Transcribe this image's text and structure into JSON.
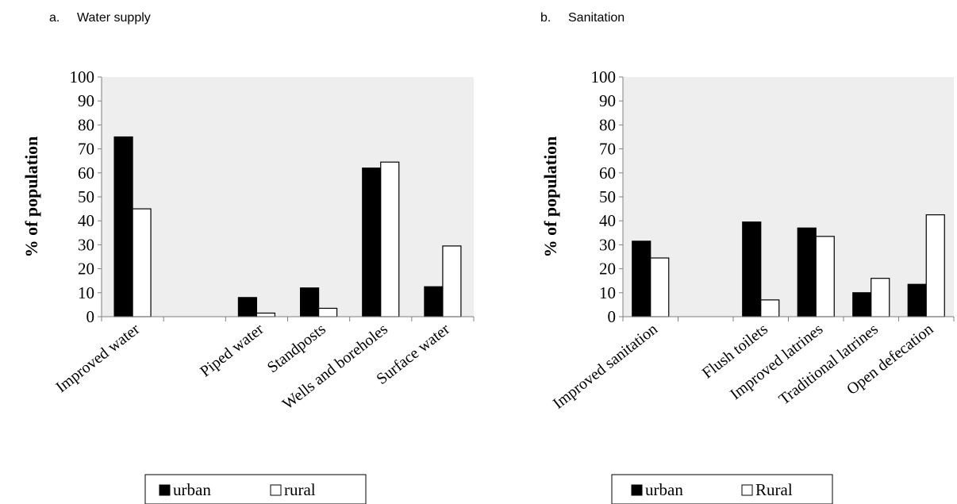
{
  "chart_data": [
    {
      "type": "bar",
      "panel_label": "a.",
      "title": "Water supply",
      "ylabel": "% of population",
      "xlabel": "",
      "ylim": [
        0,
        100
      ],
      "yticks": [
        0,
        10,
        20,
        30,
        40,
        50,
        60,
        70,
        80,
        90,
        100
      ],
      "categories": [
        "Improved water",
        "",
        "Piped water",
        "Standposts",
        "Wells and boreholes",
        "Surface water"
      ],
      "series": [
        {
          "name": "urban",
          "color": "#000000",
          "values": [
            75,
            null,
            8,
            12,
            62,
            12.5
          ]
        },
        {
          "name": "rural",
          "color": "#ffffff",
          "values": [
            45,
            null,
            1.5,
            3.5,
            64.5,
            29.5
          ]
        }
      ],
      "grid": false,
      "background": "#eeeeee",
      "legend": "bottom"
    },
    {
      "type": "bar",
      "panel_label": "b.",
      "title": "Sanitation",
      "ylabel": "% of population",
      "xlabel": "",
      "ylim": [
        0,
        100
      ],
      "yticks": [
        0,
        10,
        20,
        30,
        40,
        50,
        60,
        70,
        80,
        90,
        100
      ],
      "categories": [
        "Improved sanitation",
        "",
        "Flush toilets",
        "Improved latrines",
        "Traditional latrines",
        "Open defecation"
      ],
      "series": [
        {
          "name": "urban",
          "color": "#000000",
          "values": [
            31.5,
            null,
            39.5,
            37,
            10,
            13.5
          ]
        },
        {
          "name": "Rural",
          "color": "#ffffff",
          "values": [
            24.5,
            null,
            7,
            33.5,
            16,
            42.5
          ]
        }
      ],
      "grid": false,
      "background": "#eeeeee",
      "legend": "bottom"
    }
  ]
}
